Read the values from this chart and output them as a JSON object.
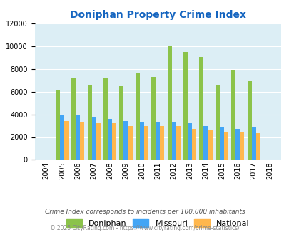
{
  "title": "Doniphan Property Crime Index",
  "years": [
    2004,
    2005,
    2006,
    2007,
    2008,
    2009,
    2010,
    2011,
    2012,
    2013,
    2014,
    2015,
    2016,
    2017,
    2018
  ],
  "doniphan": [
    0,
    6100,
    7200,
    6600,
    7200,
    6500,
    7600,
    7300,
    10050,
    9500,
    9050,
    6600,
    7900,
    6950,
    0
  ],
  "missouri": [
    0,
    3950,
    3900,
    3700,
    3600,
    3400,
    3350,
    3350,
    3350,
    3200,
    2950,
    2850,
    2750,
    2850,
    0
  ],
  "national": [
    0,
    3400,
    3300,
    3200,
    3250,
    3000,
    2950,
    2950,
    2950,
    2700,
    2600,
    2500,
    2500,
    2350,
    0
  ],
  "doniphan_color": "#8bc34a",
  "missouri_color": "#42a5f5",
  "national_color": "#ffb74d",
  "bg_color": "#dceef5",
  "ylim": [
    0,
    12000
  ],
  "yticks": [
    0,
    2000,
    4000,
    6000,
    8000,
    10000,
    12000
  ],
  "legend_labels": [
    "Doniphan",
    "Missouri",
    "National"
  ],
  "footnote1": "Crime Index corresponds to incidents per 100,000 inhabitants",
  "footnote2": "© 2025 CityRating.com - https://www.cityrating.com/crime-statistics/",
  "title_color": "#1565c0",
  "footnote1_color": "#555555",
  "footnote2_color": "#888888",
  "bar_width": 0.27
}
